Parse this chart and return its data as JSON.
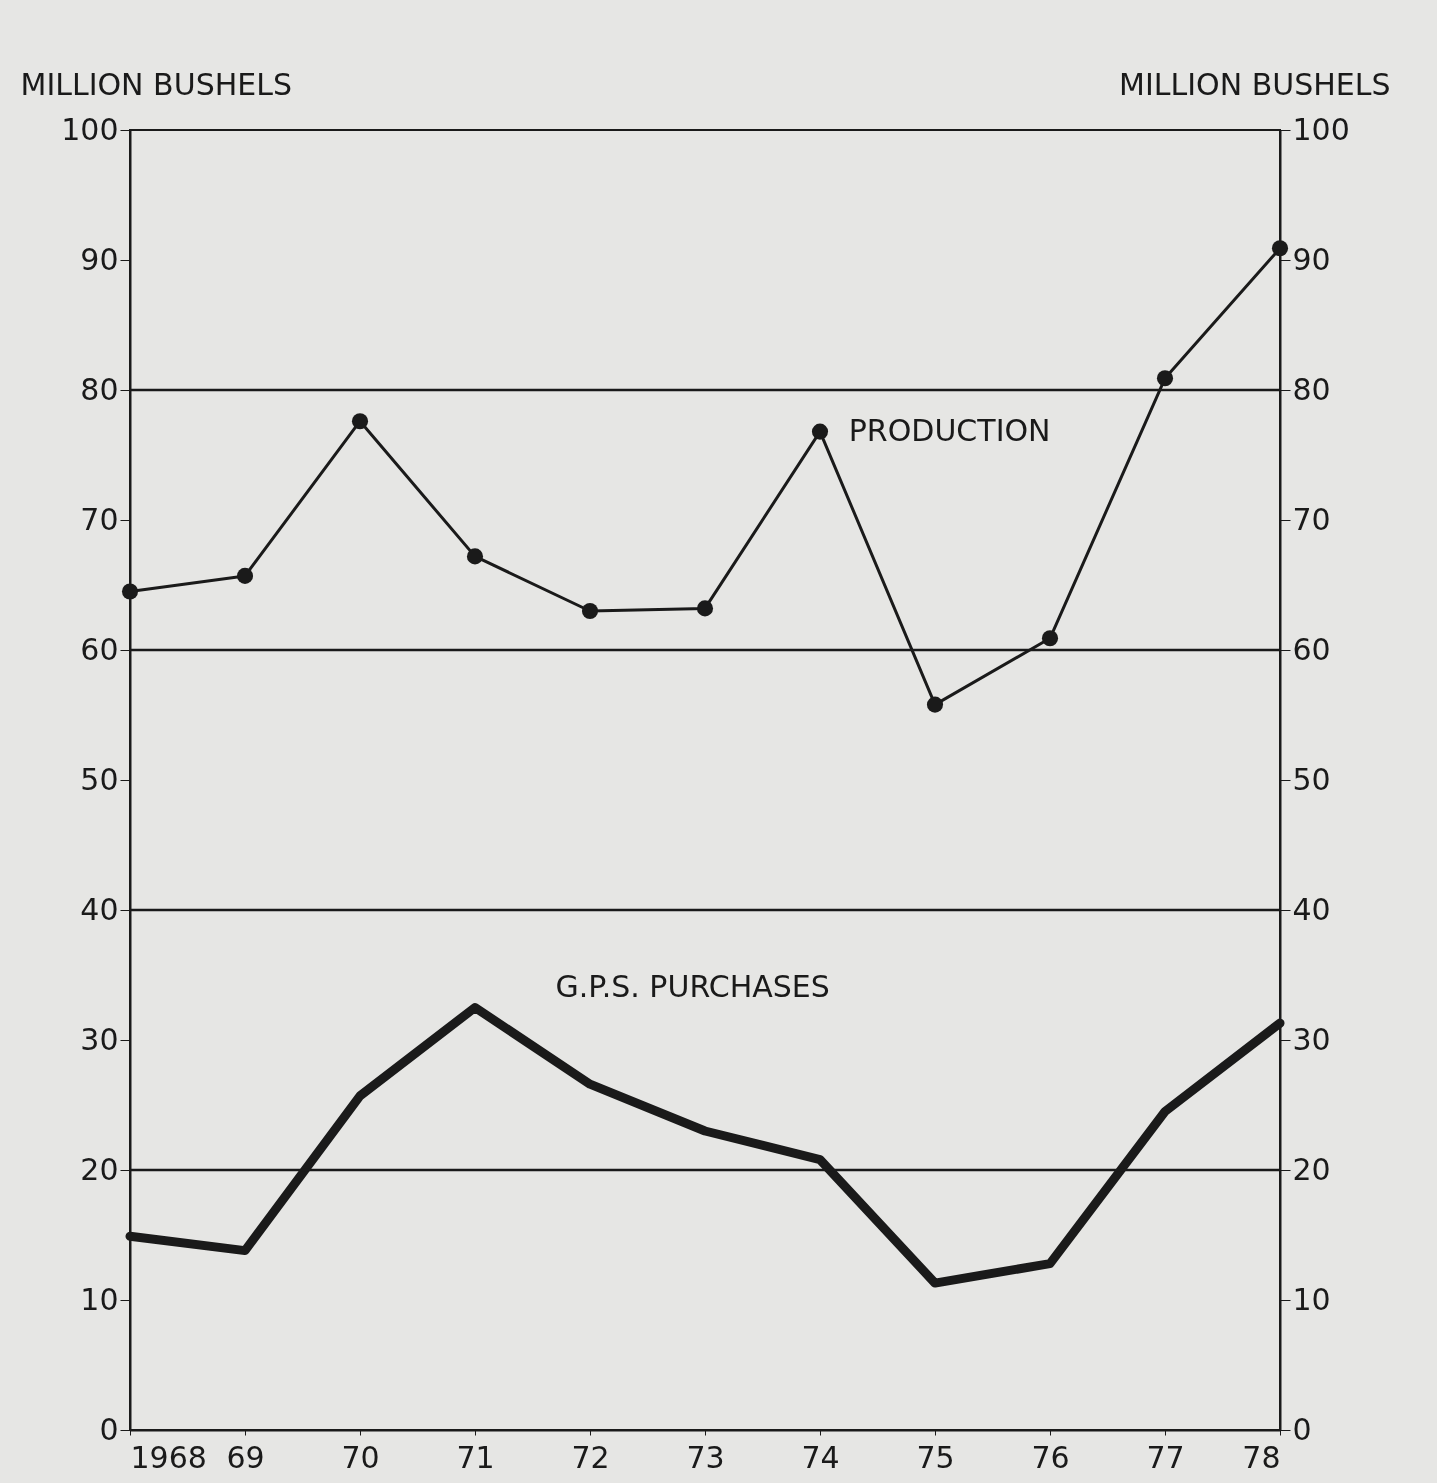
{
  "chart_data": {
    "type": "line",
    "ylabel": "MILLION BUSHELS",
    "y2label": "MILLION BUSHELS",
    "categories": [
      "1968",
      "69",
      "70",
      "71",
      "72",
      "73",
      "74",
      "75",
      "76",
      "77",
      "78"
    ],
    "series": [
      {
        "name": "PRODUCTION",
        "color": "#1a1a1a",
        "marker": "circle",
        "values": [
          64.5,
          65.7,
          77.6,
          67.2,
          63.0,
          63.2,
          76.8,
          55.8,
          60.9,
          80.9,
          90.9
        ]
      },
      {
        "name": "G.P.S. PURCHASES",
        "color": "#1a1a1a",
        "marker": "none",
        "values": [
          14.9,
          13.8,
          25.7,
          32.5,
          26.6,
          23.0,
          20.8,
          11.3,
          12.8,
          24.5,
          31.3
        ]
      }
    ],
    "ylim": [
      0,
      100
    ],
    "yticks": [
      0,
      10,
      20,
      30,
      40,
      50,
      60,
      70,
      80,
      90,
      100
    ],
    "y2lim": [
      0,
      100
    ],
    "y2ticks": [
      0,
      10,
      20,
      30,
      40,
      50,
      60,
      70,
      80,
      90,
      100
    ],
    "ref_lines": [
      {
        "axis": "y",
        "value": 80
      },
      {
        "axis": "y",
        "value": 60
      },
      {
        "axis": "y",
        "value": 40
      },
      {
        "axis": "y",
        "value": 20
      }
    ],
    "grid": false
  }
}
